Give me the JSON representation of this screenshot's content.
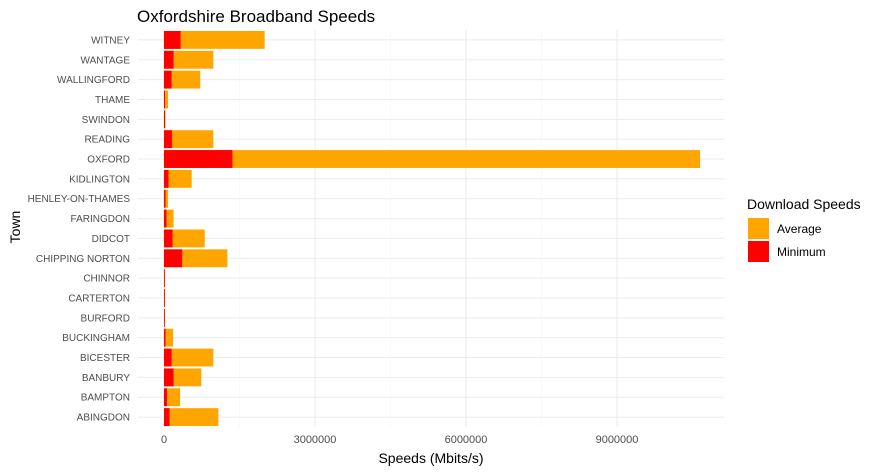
{
  "chart_data": {
    "type": "bar",
    "orientation": "horizontal",
    "stacked": "overlay",
    "title": "Oxfordshire Broadband Speeds",
    "xlabel": "Speeds (Mbits/s)",
    "ylabel": "Town",
    "xlim": [
      0,
      10700000
    ],
    "x_ticks": [
      0,
      3000000,
      6000000,
      9000000
    ],
    "x_tick_labels": [
      "0",
      "3000000",
      "6000000",
      "9000000"
    ],
    "grid": true,
    "categories": [
      "ABINGDON",
      "BAMPTON",
      "BANBURY",
      "BICESTER",
      "BUCKINGHAM",
      "BURFORD",
      "CARTERTON",
      "CHINNOR",
      "CHIPPING NORTON",
      "DIDCOT",
      "FARINGDON",
      "HENLEY-ON-THAMES",
      "KIDLINGTON",
      "OXFORD",
      "READING",
      "SWINDON",
      "THAME",
      "WALLINGFORD",
      "WANTAGE",
      "WITNEY"
    ],
    "series": [
      {
        "name": "Average",
        "color": "#FFA500",
        "values": [
          1080000,
          320000,
          740000,
          980000,
          180000,
          20000,
          20000,
          20000,
          1260000,
          810000,
          190000,
          80000,
          550000,
          10650000,
          980000,
          30000,
          80000,
          720000,
          980000,
          2000000
        ]
      },
      {
        "name": "Minimum",
        "color": "#FF0000",
        "values": [
          110000,
          60000,
          190000,
          150000,
          30000,
          10000,
          10000,
          10000,
          360000,
          170000,
          50000,
          30000,
          90000,
          1360000,
          160000,
          20000,
          20000,
          150000,
          190000,
          330000
        ]
      }
    ],
    "legend": {
      "title": "Download Speeds",
      "position": "right",
      "entries": [
        "Average",
        "Minimum"
      ]
    }
  }
}
